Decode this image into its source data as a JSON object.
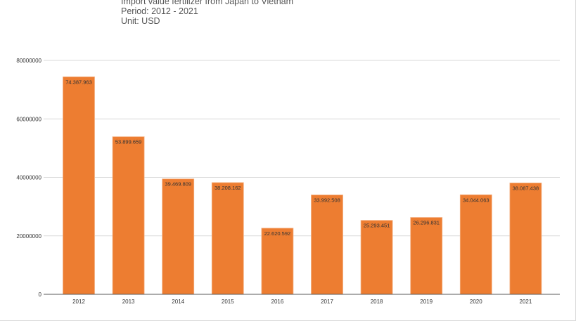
{
  "header": {
    "title": "Import value fertilizer from Japan to Vietnam",
    "period": "Period: 2012 - 2021",
    "unit": "Unit: USD"
  },
  "colors": {
    "bar": "#ED7D31",
    "bar_edge": "#F4B183",
    "grid": "#d9d9d9",
    "axis": "#595959"
  },
  "chart_data": {
    "type": "bar",
    "title": "Import value fertilizer from Japan to Vietnam",
    "categories": [
      "2012",
      "2013",
      "2014",
      "2015",
      "2016",
      "2017",
      "2018",
      "2019",
      "2020",
      "2021"
    ],
    "values": [
      74387963,
      53899659,
      39469809,
      38208162,
      22620592,
      33992508,
      25293451,
      26296831,
      34044063,
      38087438
    ],
    "data_labels": [
      "74.387.963",
      "53.899.659",
      "39.469.809",
      "38.208.162",
      "22.620.592",
      "33.992.508",
      "25.293.451",
      "26.296.831",
      "34.044.063",
      "38.087.438"
    ],
    "y_ticks": [
      0,
      20000000,
      40000000,
      60000000,
      80000000
    ],
    "y_tick_labels": [
      "0",
      "20000000",
      "40000000",
      "60000000",
      "80000000"
    ],
    "ylim": [
      0,
      80000000
    ],
    "xlabel": "",
    "ylabel": "",
    "grid": true,
    "legend": "none"
  }
}
